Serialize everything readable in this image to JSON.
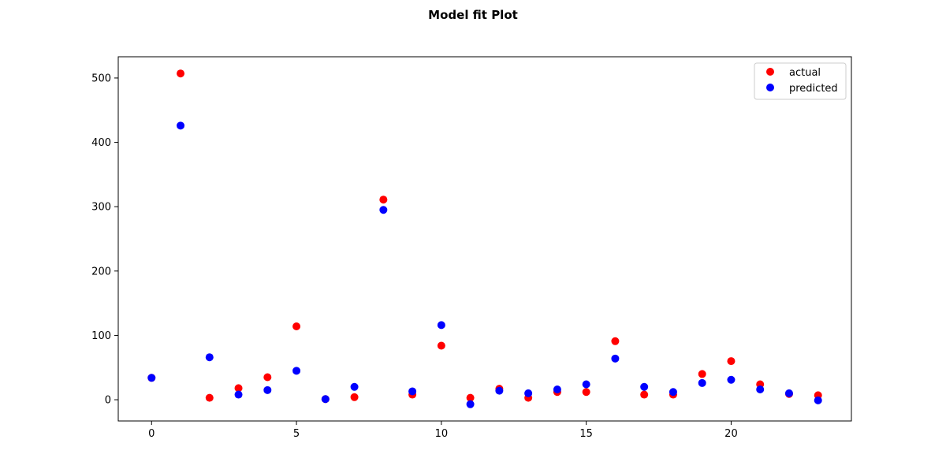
{
  "chart_data": {
    "type": "scatter",
    "title": "Model fit Plot",
    "xlabel": "",
    "ylabel": "",
    "xlim": [
      -1.15,
      24.15
    ],
    "ylim": [
      -33,
      533
    ],
    "xticks": [
      0,
      5,
      10,
      15,
      20
    ],
    "xtick_labels": [
      "0",
      "5",
      "10",
      "15",
      "20"
    ],
    "yticks": [
      0,
      100,
      200,
      300,
      400,
      500
    ],
    "ytick_labels": [
      "0",
      "100",
      "200",
      "300",
      "400",
      "500"
    ],
    "grid": false,
    "legend_position": "top-right",
    "x": [
      0,
      1,
      2,
      3,
      4,
      5,
      6,
      7,
      8,
      9,
      10,
      11,
      12,
      13,
      14,
      15,
      16,
      17,
      18,
      19,
      20,
      21,
      22,
      23
    ],
    "series": [
      {
        "name": "actual",
        "color": "#ff0000",
        "values": [
          34,
          507,
          3,
          18,
          35,
          114,
          1,
          4,
          311,
          8,
          84,
          3,
          17,
          3,
          12,
          12,
          91,
          8,
          8,
          40,
          60,
          24,
          9,
          7
        ]
      },
      {
        "name": "predicted",
        "color": "#0000ff",
        "values": [
          34,
          426,
          66,
          8,
          15,
          45,
          1,
          20,
          295,
          13,
          116,
          -7,
          14,
          10,
          16,
          24,
          64,
          20,
          12,
          26,
          31,
          16,
          10,
          -1
        ]
      }
    ]
  }
}
